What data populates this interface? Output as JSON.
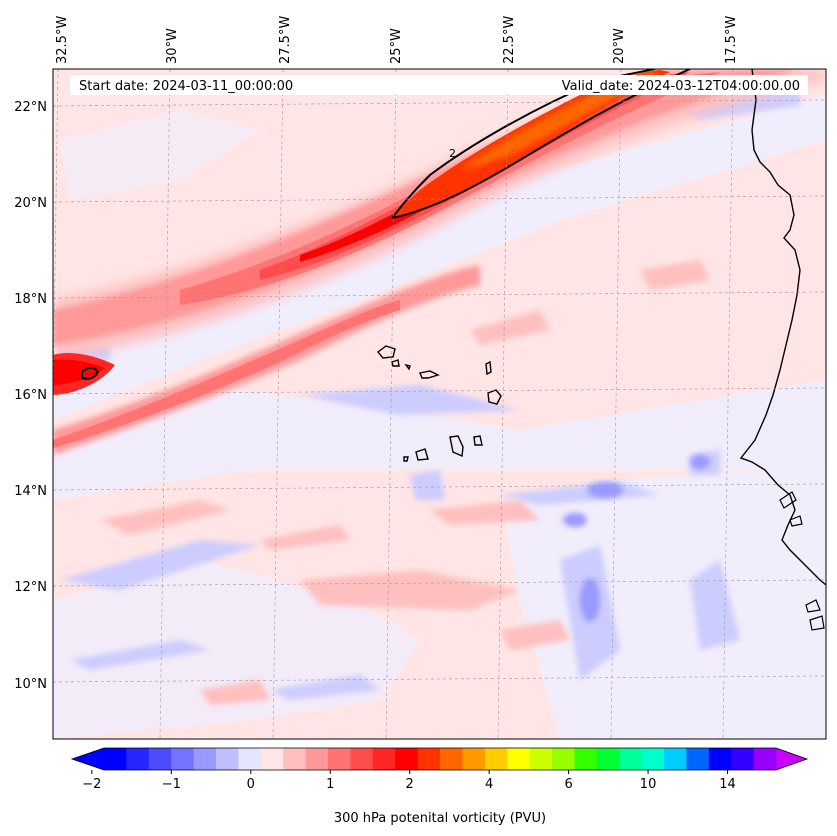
{
  "header": {
    "start_date": "Start date: 2024-03-11_00:00:00",
    "valid_date": "Valid_date: 2024-03-12T04:00:00.00"
  },
  "axes": {
    "lon_labels": [
      "32.5°W",
      "30°W",
      "27.5°W",
      "25°W",
      "22.5°W",
      "20°W",
      "17.5°W"
    ],
    "lat_labels": [
      "22°N",
      "20°N",
      "18°N",
      "16°N",
      "14°N",
      "12°N",
      "10°N"
    ],
    "lon_extent": [
      -33,
      -15.5
    ],
    "lat_extent": [
      8.8,
      22.8
    ]
  },
  "field": {
    "variable": "300 hPa potential vorticity",
    "contour_line_label": "2"
  },
  "colorbar": {
    "title": "300 hPa potenital vorticity (PVU)",
    "tick_labels": [
      "−2",
      "−1",
      "0",
      "1",
      "2",
      "4",
      "6",
      "10",
      "14"
    ],
    "colors": [
      "#0000ff",
      "#2626ff",
      "#4c4cff",
      "#7373ff",
      "#9999ff",
      "#bfbfff",
      "#e5e5ff",
      "#ffe5e5",
      "#ffbfbf",
      "#ff9999",
      "#ff7373",
      "#ff4c4c",
      "#ff2626",
      "#ff0000",
      "#ff3300",
      "#ff6600",
      "#ff9900",
      "#ffcc00",
      "#ffff00",
      "#ccff00",
      "#99ff00",
      "#33ff00",
      "#00ff33",
      "#00ff99",
      "#00ffcc",
      "#00ccff",
      "#0066ff",
      "#0000ff",
      "#3300ff",
      "#9900ff"
    ],
    "extend_low_color": "#0000ff",
    "extend_high_color": "#cc00ff"
  }
}
